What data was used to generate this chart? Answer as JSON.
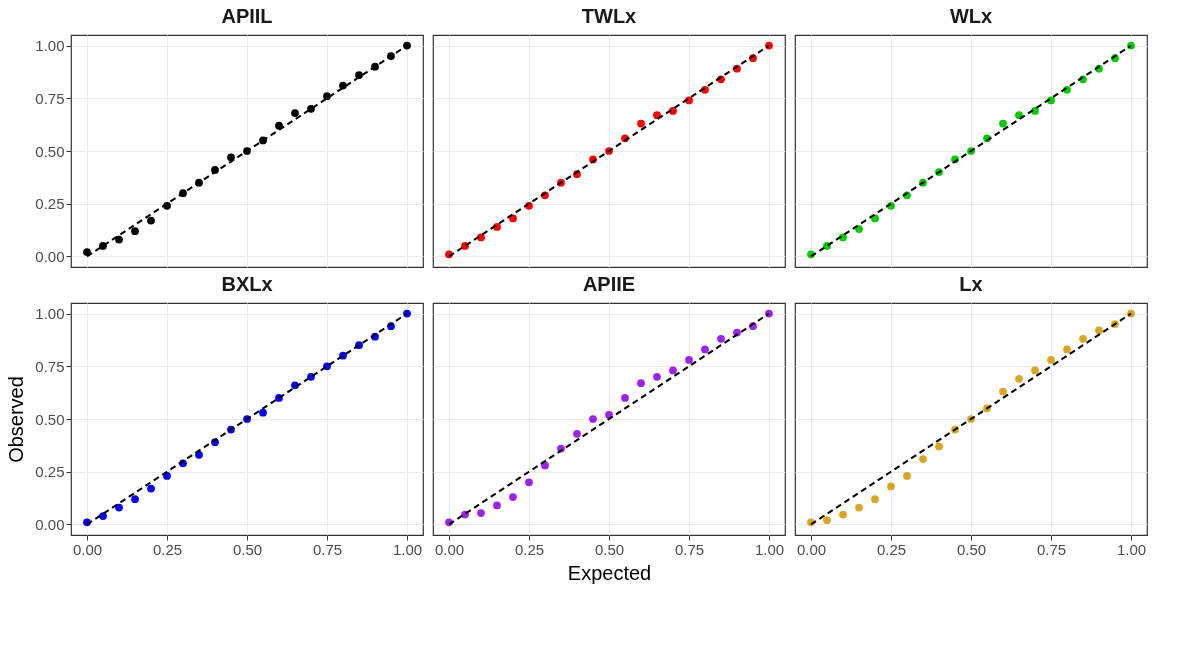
{
  "chart_data": [
    {
      "type": "scatter",
      "title": "APIIL",
      "x": [
        0,
        0.05,
        0.1,
        0.15,
        0.2,
        0.25,
        0.3,
        0.35,
        0.4,
        0.45,
        0.5,
        0.55,
        0.6,
        0.65,
        0.7,
        0.75,
        0.8,
        0.85,
        0.9,
        0.95,
        1
      ],
      "series": [
        {
          "marker": "circle",
          "color": "#000000",
          "values": [
            0.02,
            0.05,
            0.08,
            0.12,
            0.17,
            0.24,
            0.3,
            0.35,
            0.41,
            0.47,
            0.5,
            0.55,
            0.62,
            0.68,
            0.7,
            0.76,
            0.81,
            0.86,
            0.9,
            0.95,
            1
          ]
        },
        {
          "type": "line",
          "color": "#000000",
          "line_style": "dashed",
          "values": [
            0,
            0.05,
            0.1,
            0.15,
            0.2,
            0.25,
            0.3,
            0.35,
            0.4,
            0.45,
            0.5,
            0.55,
            0.6,
            0.65,
            0.7,
            0.75,
            0.8,
            0.85,
            0.9,
            0.95,
            1
          ]
        }
      ],
      "xlim": [
        -0.05,
        1.05
      ],
      "ylim": [
        -0.05,
        1.05
      ],
      "xticks": [
        0,
        0.25,
        0.5,
        0.75,
        1
      ],
      "yticks": [
        {
          "value": 0,
          "label": "0.00"
        },
        {
          "value": 0.25,
          "label": "0.25"
        },
        {
          "value": 0.5,
          "label": "0.50"
        },
        {
          "value": 0.75,
          "label": "0.75"
        },
        {
          "value": 1,
          "label": "1.00"
        }
      ],
      "grid": true,
      "tick_labels": "y"
    },
    {
      "type": "scatter",
      "title": "TWLx",
      "x": [
        0,
        0.05,
        0.1,
        0.15,
        0.2,
        0.25,
        0.3,
        0.35,
        0.4,
        0.45,
        0.5,
        0.55,
        0.6,
        0.65,
        0.7,
        0.75,
        0.8,
        0.85,
        0.9,
        0.95,
        1
      ],
      "series": [
        {
          "marker": "circle",
          "color": "#ff0000",
          "values": [
            0.01,
            0.05,
            0.09,
            0.14,
            0.18,
            0.24,
            0.29,
            0.35,
            0.39,
            0.46,
            0.5,
            0.56,
            0.63,
            0.67,
            0.69,
            0.74,
            0.79,
            0.84,
            0.89,
            0.94,
            1
          ]
        },
        {
          "type": "line",
          "color": "#000000",
          "line_style": "dashed",
          "values": [
            0,
            0.05,
            0.1,
            0.15,
            0.2,
            0.25,
            0.3,
            0.35,
            0.4,
            0.45,
            0.5,
            0.55,
            0.6,
            0.65,
            0.7,
            0.75,
            0.8,
            0.85,
            0.9,
            0.95,
            1
          ]
        }
      ],
      "xlim": [
        -0.05,
        1.05
      ],
      "ylim": [
        -0.05,
        1.05
      ],
      "xticks": [
        0,
        0.25,
        0.5,
        0.75,
        1
      ],
      "yticks": [
        0,
        0.25,
        0.5,
        0.75,
        1
      ],
      "grid": true,
      "tick_labels": false
    },
    {
      "type": "scatter",
      "title": "WLx",
      "x": [
        0,
        0.05,
        0.1,
        0.15,
        0.2,
        0.25,
        0.3,
        0.35,
        0.4,
        0.45,
        0.5,
        0.55,
        0.6,
        0.65,
        0.7,
        0.75,
        0.8,
        0.85,
        0.9,
        0.95,
        1
      ],
      "series": [
        {
          "marker": "circle",
          "color": "#00cd00",
          "values": [
            0.01,
            0.05,
            0.09,
            0.13,
            0.18,
            0.24,
            0.29,
            0.35,
            0.4,
            0.46,
            0.5,
            0.56,
            0.63,
            0.67,
            0.69,
            0.74,
            0.79,
            0.84,
            0.89,
            0.94,
            1
          ]
        },
        {
          "type": "line",
          "color": "#000000",
          "line_style": "dashed",
          "values": [
            0,
            0.05,
            0.1,
            0.15,
            0.2,
            0.25,
            0.3,
            0.35,
            0.4,
            0.45,
            0.5,
            0.55,
            0.6,
            0.65,
            0.7,
            0.75,
            0.8,
            0.85,
            0.9,
            0.95,
            1
          ]
        }
      ],
      "xlim": [
        -0.05,
        1.05
      ],
      "ylim": [
        -0.05,
        1.05
      ],
      "xticks": [
        0,
        0.25,
        0.5,
        0.75,
        1
      ],
      "yticks": [
        0,
        0.25,
        0.5,
        0.75,
        1
      ],
      "grid": true,
      "tick_labels": false
    },
    {
      "type": "scatter",
      "title": "BXLx",
      "ylabel": "Observed",
      "x": [
        0,
        0.05,
        0.1,
        0.15,
        0.2,
        0.25,
        0.3,
        0.35,
        0.4,
        0.45,
        0.5,
        0.55,
        0.6,
        0.65,
        0.7,
        0.75,
        0.8,
        0.85,
        0.9,
        0.95,
        1
      ],
      "series": [
        {
          "marker": "circle",
          "color": "#0000ff",
          "values": [
            0.01,
            0.04,
            0.08,
            0.12,
            0.17,
            0.23,
            0.29,
            0.33,
            0.39,
            0.45,
            0.5,
            0.53,
            0.6,
            0.66,
            0.7,
            0.75,
            0.8,
            0.85,
            0.89,
            0.94,
            1
          ]
        },
        {
          "type": "line",
          "color": "#000000",
          "line_style": "dashed",
          "values": [
            0,
            0.05,
            0.1,
            0.15,
            0.2,
            0.25,
            0.3,
            0.35,
            0.4,
            0.45,
            0.5,
            0.55,
            0.6,
            0.65,
            0.7,
            0.75,
            0.8,
            0.85,
            0.9,
            0.95,
            1
          ]
        }
      ],
      "xlim": [
        -0.05,
        1.05
      ],
      "ylim": [
        -0.05,
        1.05
      ],
      "xticks": [
        {
          "value": 0,
          "label": "0.00"
        },
        {
          "value": 0.25,
          "label": "0.25"
        },
        {
          "value": 0.5,
          "label": "0.50"
        },
        {
          "value": 0.75,
          "label": "0.75"
        },
        {
          "value": 1,
          "label": "1.00"
        }
      ],
      "yticks": [
        {
          "value": 0,
          "label": "0.00"
        },
        {
          "value": 0.25,
          "label": "0.25"
        },
        {
          "value": 0.5,
          "label": "0.50"
        },
        {
          "value": 0.75,
          "label": "0.75"
        },
        {
          "value": 1,
          "label": "1.00"
        }
      ],
      "grid": true
    },
    {
      "type": "scatter",
      "title": "APIIE",
      "xlabel": "Expected",
      "x": [
        0,
        0.05,
        0.1,
        0.15,
        0.2,
        0.25,
        0.3,
        0.35,
        0.4,
        0.45,
        0.5,
        0.55,
        0.6,
        0.65,
        0.7,
        0.75,
        0.8,
        0.85,
        0.9,
        0.95,
        1
      ],
      "series": [
        {
          "marker": "circle",
          "color": "#a020f0",
          "values": [
            0.01,
            0.047,
            0.054,
            0.09,
            0.13,
            0.2,
            0.28,
            0.36,
            0.43,
            0.5,
            0.52,
            0.6,
            0.67,
            0.7,
            0.73,
            0.78,
            0.83,
            0.88,
            0.91,
            0.94,
            1
          ]
        },
        {
          "type": "line",
          "color": "#000000",
          "line_style": "dashed",
          "values": [
            0,
            0.05,
            0.1,
            0.15,
            0.2,
            0.25,
            0.3,
            0.35,
            0.4,
            0.45,
            0.5,
            0.55,
            0.6,
            0.65,
            0.7,
            0.75,
            0.8,
            0.85,
            0.9,
            0.95,
            1
          ]
        }
      ],
      "xlim": [
        -0.05,
        1.05
      ],
      "ylim": [
        -0.05,
        1.05
      ],
      "xticks": [
        {
          "value": 0,
          "label": "0.00"
        },
        {
          "value": 0.25,
          "label": "0.25"
        },
        {
          "value": 0.5,
          "label": "0.50"
        },
        {
          "value": 0.75,
          "label": "0.75"
        },
        {
          "value": 1,
          "label": "1.00"
        }
      ],
      "yticks": [
        0,
        0.25,
        0.5,
        0.75,
        1
      ],
      "grid": true,
      "tick_labels": "x"
    },
    {
      "type": "scatter",
      "title": "Lx",
      "x": [
        0,
        0.05,
        0.1,
        0.15,
        0.2,
        0.25,
        0.3,
        0.35,
        0.4,
        0.45,
        0.5,
        0.55,
        0.6,
        0.65,
        0.7,
        0.75,
        0.8,
        0.85,
        0.9,
        0.95,
        1
      ],
      "series": [
        {
          "marker": "circle",
          "color": "#daa520",
          "values": [
            0.01,
            0.02,
            0.047,
            0.08,
            0.12,
            0.18,
            0.23,
            0.31,
            0.37,
            0.45,
            0.5,
            0.55,
            0.63,
            0.69,
            0.73,
            0.78,
            0.83,
            0.88,
            0.92,
            0.95,
            1
          ]
        },
        {
          "type": "line",
          "color": "#000000",
          "line_style": "dashed",
          "values": [
            0,
            0.05,
            0.1,
            0.15,
            0.2,
            0.25,
            0.3,
            0.35,
            0.4,
            0.45,
            0.5,
            0.55,
            0.6,
            0.65,
            0.7,
            0.75,
            0.8,
            0.85,
            0.9,
            0.95,
            1
          ]
        }
      ],
      "xlim": [
        -0.05,
        1.05
      ],
      "ylim": [
        -0.05,
        1.05
      ],
      "xticks": [
        {
          "value": 0,
          "label": "0.00"
        },
        {
          "value": 0.25,
          "label": "0.25"
        },
        {
          "value": 0.5,
          "label": "0.50"
        },
        {
          "value": 0.75,
          "label": "0.75"
        },
        {
          "value": 1,
          "label": "1.00"
        }
      ],
      "yticks": [
        0,
        0.25,
        0.5,
        0.75,
        1
      ],
      "grid": true,
      "tick_labels": "x"
    }
  ]
}
